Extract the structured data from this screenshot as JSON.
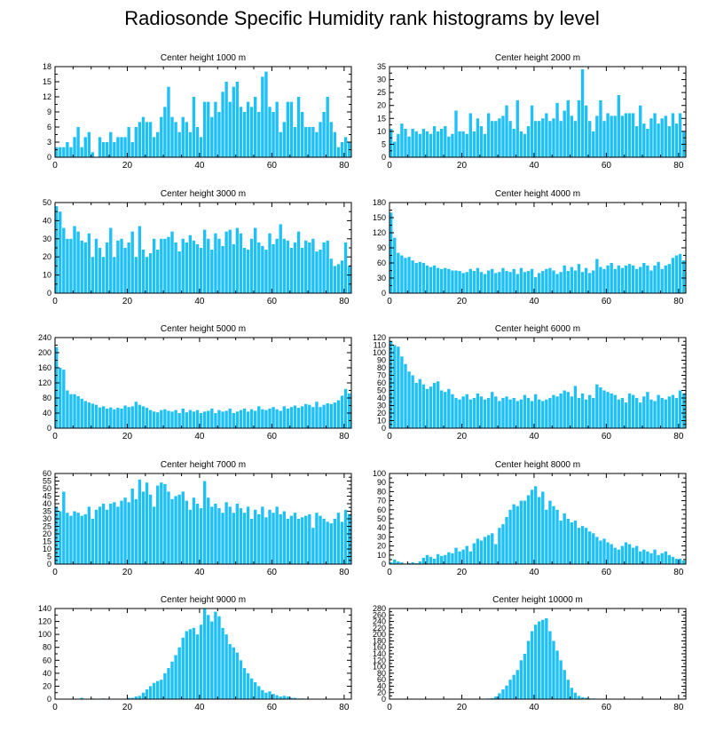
{
  "title": "Radiosonde Specific Humidity rank histograms by level",
  "colors": {
    "bar": "#1ec0f5",
    "axis": "#000000"
  },
  "chart_data": [
    {
      "type": "bar",
      "title": "Center height 1000 m",
      "xlim": [
        0,
        82
      ],
      "xticks": [
        0,
        20,
        40,
        60,
        80
      ],
      "ylim": [
        0,
        18
      ],
      "yticks": [
        0,
        3,
        6,
        9,
        12,
        15,
        18
      ],
      "values": [
        2,
        2,
        2,
        3,
        2,
        4,
        6,
        2,
        4,
        5,
        1,
        0,
        4,
        3,
        3,
        5,
        3,
        4,
        4,
        4,
        6,
        3,
        6,
        7,
        8,
        7,
        7,
        4,
        5,
        8,
        10,
        14,
        8,
        7,
        5,
        8,
        7,
        5,
        12,
        6,
        4,
        11,
        11,
        8,
        11,
        9,
        13,
        15,
        11,
        14,
        15,
        10,
        9,
        11,
        10,
        12,
        9,
        16,
        17,
        10,
        9,
        11,
        5,
        7,
        11,
        11,
        6,
        12,
        9,
        6,
        6,
        6,
        5,
        7,
        9,
        12,
        7,
        5,
        2,
        3,
        4,
        3
      ]
    },
    {
      "type": "bar",
      "title": "Center height 2000 m",
      "xlim": [
        0,
        82
      ],
      "xticks": [
        0,
        20,
        40,
        60,
        80
      ],
      "ylim": [
        0,
        35
      ],
      "yticks": [
        0,
        5,
        10,
        15,
        20,
        25,
        30,
        35
      ],
      "values": [
        11,
        6,
        9,
        13,
        11,
        8,
        11,
        10,
        9,
        11,
        10,
        9,
        12,
        10,
        11,
        12,
        8,
        9,
        18,
        10,
        10,
        9,
        17,
        10,
        15,
        12,
        9,
        17,
        14,
        14,
        15,
        16,
        20,
        14,
        11,
        22,
        10,
        9,
        12,
        20,
        14,
        14,
        15,
        17,
        14,
        15,
        21,
        14,
        18,
        22,
        16,
        14,
        22,
        34,
        20,
        14,
        10,
        16,
        22,
        14,
        17,
        16,
        16,
        24,
        16,
        17,
        17,
        17,
        12,
        20,
        13,
        11,
        15,
        17,
        13,
        15,
        16,
        12,
        17,
        13,
        17,
        10
      ]
    },
    {
      "type": "bar",
      "title": "Center height 3000 m",
      "xlim": [
        0,
        82
      ],
      "xticks": [
        0,
        20,
        40,
        60,
        80
      ],
      "ylim": [
        0,
        50
      ],
      "yticks": [
        0,
        10,
        20,
        30,
        40,
        50
      ],
      "values": [
        48,
        45,
        36,
        30,
        30,
        37,
        34,
        29,
        28,
        33,
        20,
        30,
        25,
        20,
        28,
        36,
        20,
        29,
        30,
        25,
        28,
        34,
        20,
        37,
        24,
        20,
        22,
        30,
        24,
        30,
        30,
        31,
        34,
        28,
        23,
        30,
        28,
        32,
        29,
        27,
        25,
        35,
        30,
        24,
        33,
        30,
        26,
        34,
        35,
        27,
        36,
        33,
        25,
        24,
        30,
        36,
        28,
        26,
        24,
        33,
        27,
        30,
        38,
        30,
        29,
        25,
        28,
        34,
        25,
        29,
        28,
        30,
        23,
        24,
        28,
        29,
        19,
        15,
        16,
        18,
        28,
        15
      ]
    },
    {
      "type": "bar",
      "title": "Center height 4000 m",
      "xlim": [
        0,
        82
      ],
      "xticks": [
        0,
        20,
        40,
        60,
        80
      ],
      "ylim": [
        0,
        180
      ],
      "yticks": [
        0,
        30,
        60,
        90,
        120,
        150,
        180
      ],
      "values": [
        160,
        110,
        80,
        75,
        70,
        72,
        65,
        60,
        62,
        60,
        55,
        52,
        55,
        50,
        48,
        50,
        48,
        45,
        45,
        44,
        40,
        42,
        48,
        44,
        50,
        42,
        38,
        45,
        48,
        40,
        42,
        50,
        44,
        42,
        48,
        38,
        50,
        42,
        44,
        48,
        32,
        40,
        44,
        48,
        50,
        45,
        38,
        42,
        55,
        44,
        52,
        45,
        58,
        42,
        50,
        40,
        45,
        68,
        52,
        48,
        55,
        60,
        48,
        55,
        50,
        55,
        58,
        55,
        48,
        52,
        60,
        55,
        45,
        55,
        62,
        48,
        55,
        58,
        70,
        75,
        78,
        65
      ]
    },
    {
      "type": "bar",
      "title": "Center height 5000 m",
      "xlim": [
        0,
        82
      ],
      "xticks": [
        0,
        20,
        40,
        60,
        80
      ],
      "ylim": [
        0,
        240
      ],
      "yticks": [
        0,
        40,
        80,
        120,
        160,
        200,
        240
      ],
      "values": [
        215,
        160,
        155,
        100,
        90,
        90,
        85,
        78,
        72,
        68,
        65,
        62,
        55,
        58,
        52,
        55,
        50,
        54,
        52,
        60,
        56,
        58,
        70,
        62,
        58,
        54,
        48,
        44,
        42,
        48,
        50,
        46,
        44,
        48,
        40,
        52,
        42,
        48,
        44,
        48,
        40,
        44,
        46,
        52,
        40,
        48,
        44,
        46,
        52,
        40,
        44,
        48,
        52,
        44,
        50,
        46,
        58,
        50,
        48,
        52,
        56,
        50,
        46,
        58,
        52,
        56,
        60,
        54,
        58,
        64,
        62,
        56,
        70,
        56,
        62,
        66,
        64,
        68,
        74,
        86,
        104,
        92
      ]
    },
    {
      "type": "bar",
      "title": "Center height 6000 m",
      "xlim": [
        0,
        82
      ],
      "xticks": [
        0,
        20,
        40,
        60,
        80
      ],
      "ylim": [
        0,
        120
      ],
      "yticks": [
        0,
        10,
        20,
        30,
        40,
        50,
        60,
        70,
        80,
        90,
        100,
        110,
        120
      ],
      "values": [
        115,
        110,
        108,
        95,
        85,
        75,
        70,
        60,
        65,
        58,
        52,
        55,
        60,
        62,
        50,
        48,
        52,
        45,
        40,
        38,
        42,
        45,
        38,
        40,
        46,
        42,
        38,
        40,
        48,
        42,
        36,
        40,
        42,
        38,
        40,
        36,
        38,
        44,
        40,
        36,
        45,
        38,
        36,
        38,
        40,
        44,
        42,
        46,
        50,
        48,
        42,
        56,
        40,
        46,
        38,
        44,
        40,
        58,
        54,
        50,
        48,
        46,
        44,
        38,
        40,
        34,
        46,
        44,
        40,
        34,
        42,
        48,
        38,
        36,
        44,
        40,
        38,
        42,
        44,
        40,
        50,
        46
      ]
    },
    {
      "type": "bar",
      "title": "Center height 7000 m",
      "xlim": [
        0,
        82
      ],
      "xticks": [
        0,
        20,
        40,
        60,
        80
      ],
      "ylim": [
        0,
        60
      ],
      "yticks": [
        0,
        5,
        10,
        15,
        20,
        25,
        30,
        35,
        40,
        45,
        50,
        55,
        60
      ],
      "values": [
        38,
        35,
        48,
        34,
        32,
        35,
        34,
        32,
        33,
        38,
        30,
        36,
        38,
        40,
        36,
        40,
        41,
        38,
        42,
        44,
        41,
        50,
        43,
        56,
        48,
        54,
        46,
        38,
        52,
        54,
        53,
        48,
        43,
        45,
        46,
        48,
        42,
        36,
        44,
        40,
        37,
        55,
        44,
        38,
        40,
        37,
        34,
        41,
        38,
        34,
        40,
        37,
        34,
        38,
        30,
        36,
        33,
        38,
        31,
        36,
        34,
        38,
        33,
        35,
        30,
        32,
        34,
        30,
        31,
        32,
        33,
        24,
        34,
        32,
        30,
        28,
        27,
        30,
        34,
        28,
        36,
        33
      ]
    },
    {
      "type": "bar",
      "title": "Center height 8000 m",
      "xlim": [
        0,
        82
      ],
      "xticks": [
        0,
        20,
        40,
        60,
        80
      ],
      "ylim": [
        0,
        100
      ],
      "yticks": [
        0,
        10,
        20,
        30,
        40,
        50,
        60,
        70,
        80,
        90,
        100
      ],
      "values": [
        2,
        5,
        3,
        2,
        0,
        1,
        2,
        1,
        3,
        7,
        10,
        8,
        6,
        11,
        9,
        10,
        13,
        12,
        18,
        14,
        16,
        20,
        14,
        23,
        28,
        26,
        30,
        32,
        34,
        22,
        40,
        44,
        52,
        60,
        66,
        64,
        70,
        70,
        76,
        82,
        86,
        74,
        80,
        60,
        70,
        64,
        60,
        48,
        56,
        50,
        46,
        48,
        40,
        42,
        40,
        36,
        34,
        30,
        26,
        28,
        24,
        22,
        18,
        16,
        20,
        24,
        22,
        18,
        20,
        14,
        16,
        14,
        12,
        16,
        10,
        12,
        14,
        10,
        8,
        6,
        6,
        4
      ]
    },
    {
      "type": "bar",
      "title": "Center height 9000 m",
      "xlim": [
        0,
        82
      ],
      "xticks": [
        0,
        20,
        40,
        60,
        80
      ],
      "ylim": [
        0,
        140
      ],
      "yticks": [
        0,
        20,
        40,
        60,
        80,
        100,
        120,
        140
      ],
      "values": [
        0,
        0,
        0,
        0,
        0,
        0,
        0,
        2,
        0,
        0,
        1,
        0,
        0,
        1,
        0,
        0,
        0,
        0,
        0,
        0,
        2,
        2,
        4,
        5,
        10,
        15,
        20,
        25,
        28,
        30,
        40,
        48,
        58,
        68,
        80,
        95,
        105,
        108,
        110,
        100,
        115,
        140,
        130,
        120,
        135,
        128,
        110,
        100,
        85,
        80,
        72,
        60,
        48,
        40,
        32,
        26,
        20,
        14,
        10,
        12,
        8,
        6,
        4,
        5,
        4,
        2,
        2,
        1,
        1,
        0,
        0,
        0,
        0,
        0,
        0,
        0,
        0,
        0,
        0,
        0,
        0,
        0
      ]
    },
    {
      "type": "bar",
      "title": "Center height 10000 m",
      "xlim": [
        0,
        82
      ],
      "xticks": [
        0,
        20,
        40,
        60,
        80
      ],
      "ylim": [
        0,
        280
      ],
      "yticks": [
        0,
        20,
        40,
        60,
        80,
        100,
        120,
        140,
        160,
        180,
        200,
        220,
        240,
        260,
        280
      ],
      "values": [
        0,
        0,
        0,
        0,
        0,
        0,
        0,
        0,
        0,
        0,
        0,
        0,
        0,
        0,
        0,
        0,
        0,
        0,
        0,
        0,
        0,
        0,
        0,
        0,
        0,
        0,
        0,
        2,
        3,
        8,
        18,
        30,
        42,
        60,
        75,
        90,
        120,
        140,
        180,
        210,
        230,
        240,
        245,
        250,
        210,
        180,
        150,
        120,
        90,
        60,
        35,
        20,
        10,
        6,
        4,
        2,
        2,
        1,
        0,
        0,
        0,
        0,
        0,
        0,
        0,
        0,
        0,
        0,
        0,
        0,
        0,
        0,
        0,
        0,
        0,
        0,
        0,
        0,
        0,
        0,
        0,
        0
      ]
    }
  ]
}
